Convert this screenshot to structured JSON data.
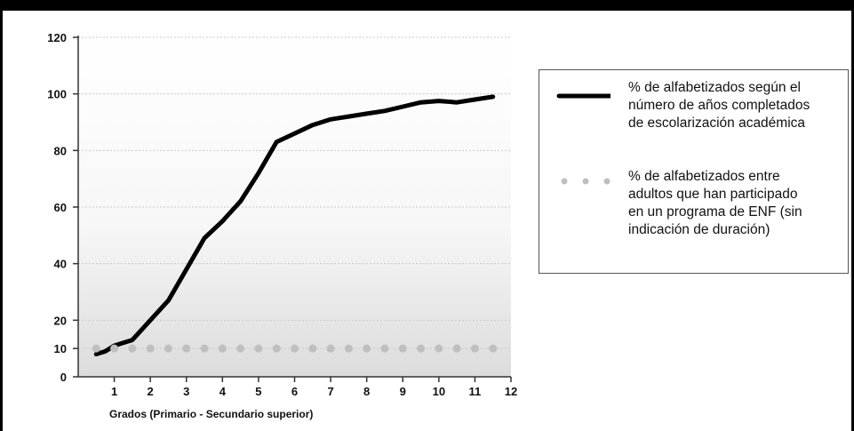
{
  "chart_data": {
    "type": "line",
    "title": "",
    "xlabel": "Grados (Primario - Secundario superior)",
    "ylabel": "",
    "x_ticks": [
      1,
      2,
      3,
      4,
      5,
      6,
      7,
      8,
      9,
      10,
      11,
      12
    ],
    "y_ticks": [
      0,
      10,
      20,
      40,
      60,
      80,
      100,
      120
    ],
    "xlim": [
      0,
      12
    ],
    "ylim": [
      0,
      120
    ],
    "grid": true,
    "legend_position": "right",
    "series": [
      {
        "name": "% de alfabetizados según el número de años completados de escolarización académica",
        "style": "solid",
        "color": "#000000",
        "x": [
          0.5,
          0.75,
          1.0,
          1.25,
          1.5,
          2.0,
          2.5,
          3.0,
          3.5,
          4.0,
          4.5,
          5.0,
          5.5,
          6.0,
          6.5,
          7.0,
          7.5,
          8.0,
          8.5,
          9.0,
          9.5,
          10.0,
          10.5,
          11.0,
          11.5
        ],
        "y": [
          8,
          9,
          11,
          12,
          13,
          20,
          27,
          38,
          49,
          55,
          62,
          72,
          83,
          86,
          89,
          91,
          92,
          93,
          94,
          95.5,
          97,
          97.5,
          97,
          98,
          99
        ]
      },
      {
        "name": "% de alfabetizados entre adultos que han participado en un programa de ENF (sin indicación de duración)",
        "style": "dotted",
        "color": "#bfbfbf",
        "x": [
          0.5,
          1.0,
          1.5,
          2.0,
          2.5,
          3.0,
          3.5,
          4.0,
          4.5,
          5.0,
          5.5,
          6.0,
          6.5,
          7.0,
          7.5,
          8.0,
          8.5,
          9.0,
          9.5,
          10.0,
          10.5,
          11.0,
          11.5
        ],
        "y": [
          10,
          10,
          10,
          10,
          10,
          10,
          10,
          10,
          10,
          10,
          10,
          10,
          10,
          10,
          10,
          10,
          10,
          10,
          10,
          10,
          10,
          10,
          10
        ]
      }
    ]
  },
  "legend": {
    "entries": [
      {
        "lines": [
          "% de alfabetizados según el",
          "número de años completados",
          "de escolarización académica"
        ]
      },
      {
        "lines": [
          "% de alfabetizados entre",
          "adultos que han participado",
          "en un programa de ENF (sin",
          "indicación de duración)"
        ]
      }
    ]
  }
}
